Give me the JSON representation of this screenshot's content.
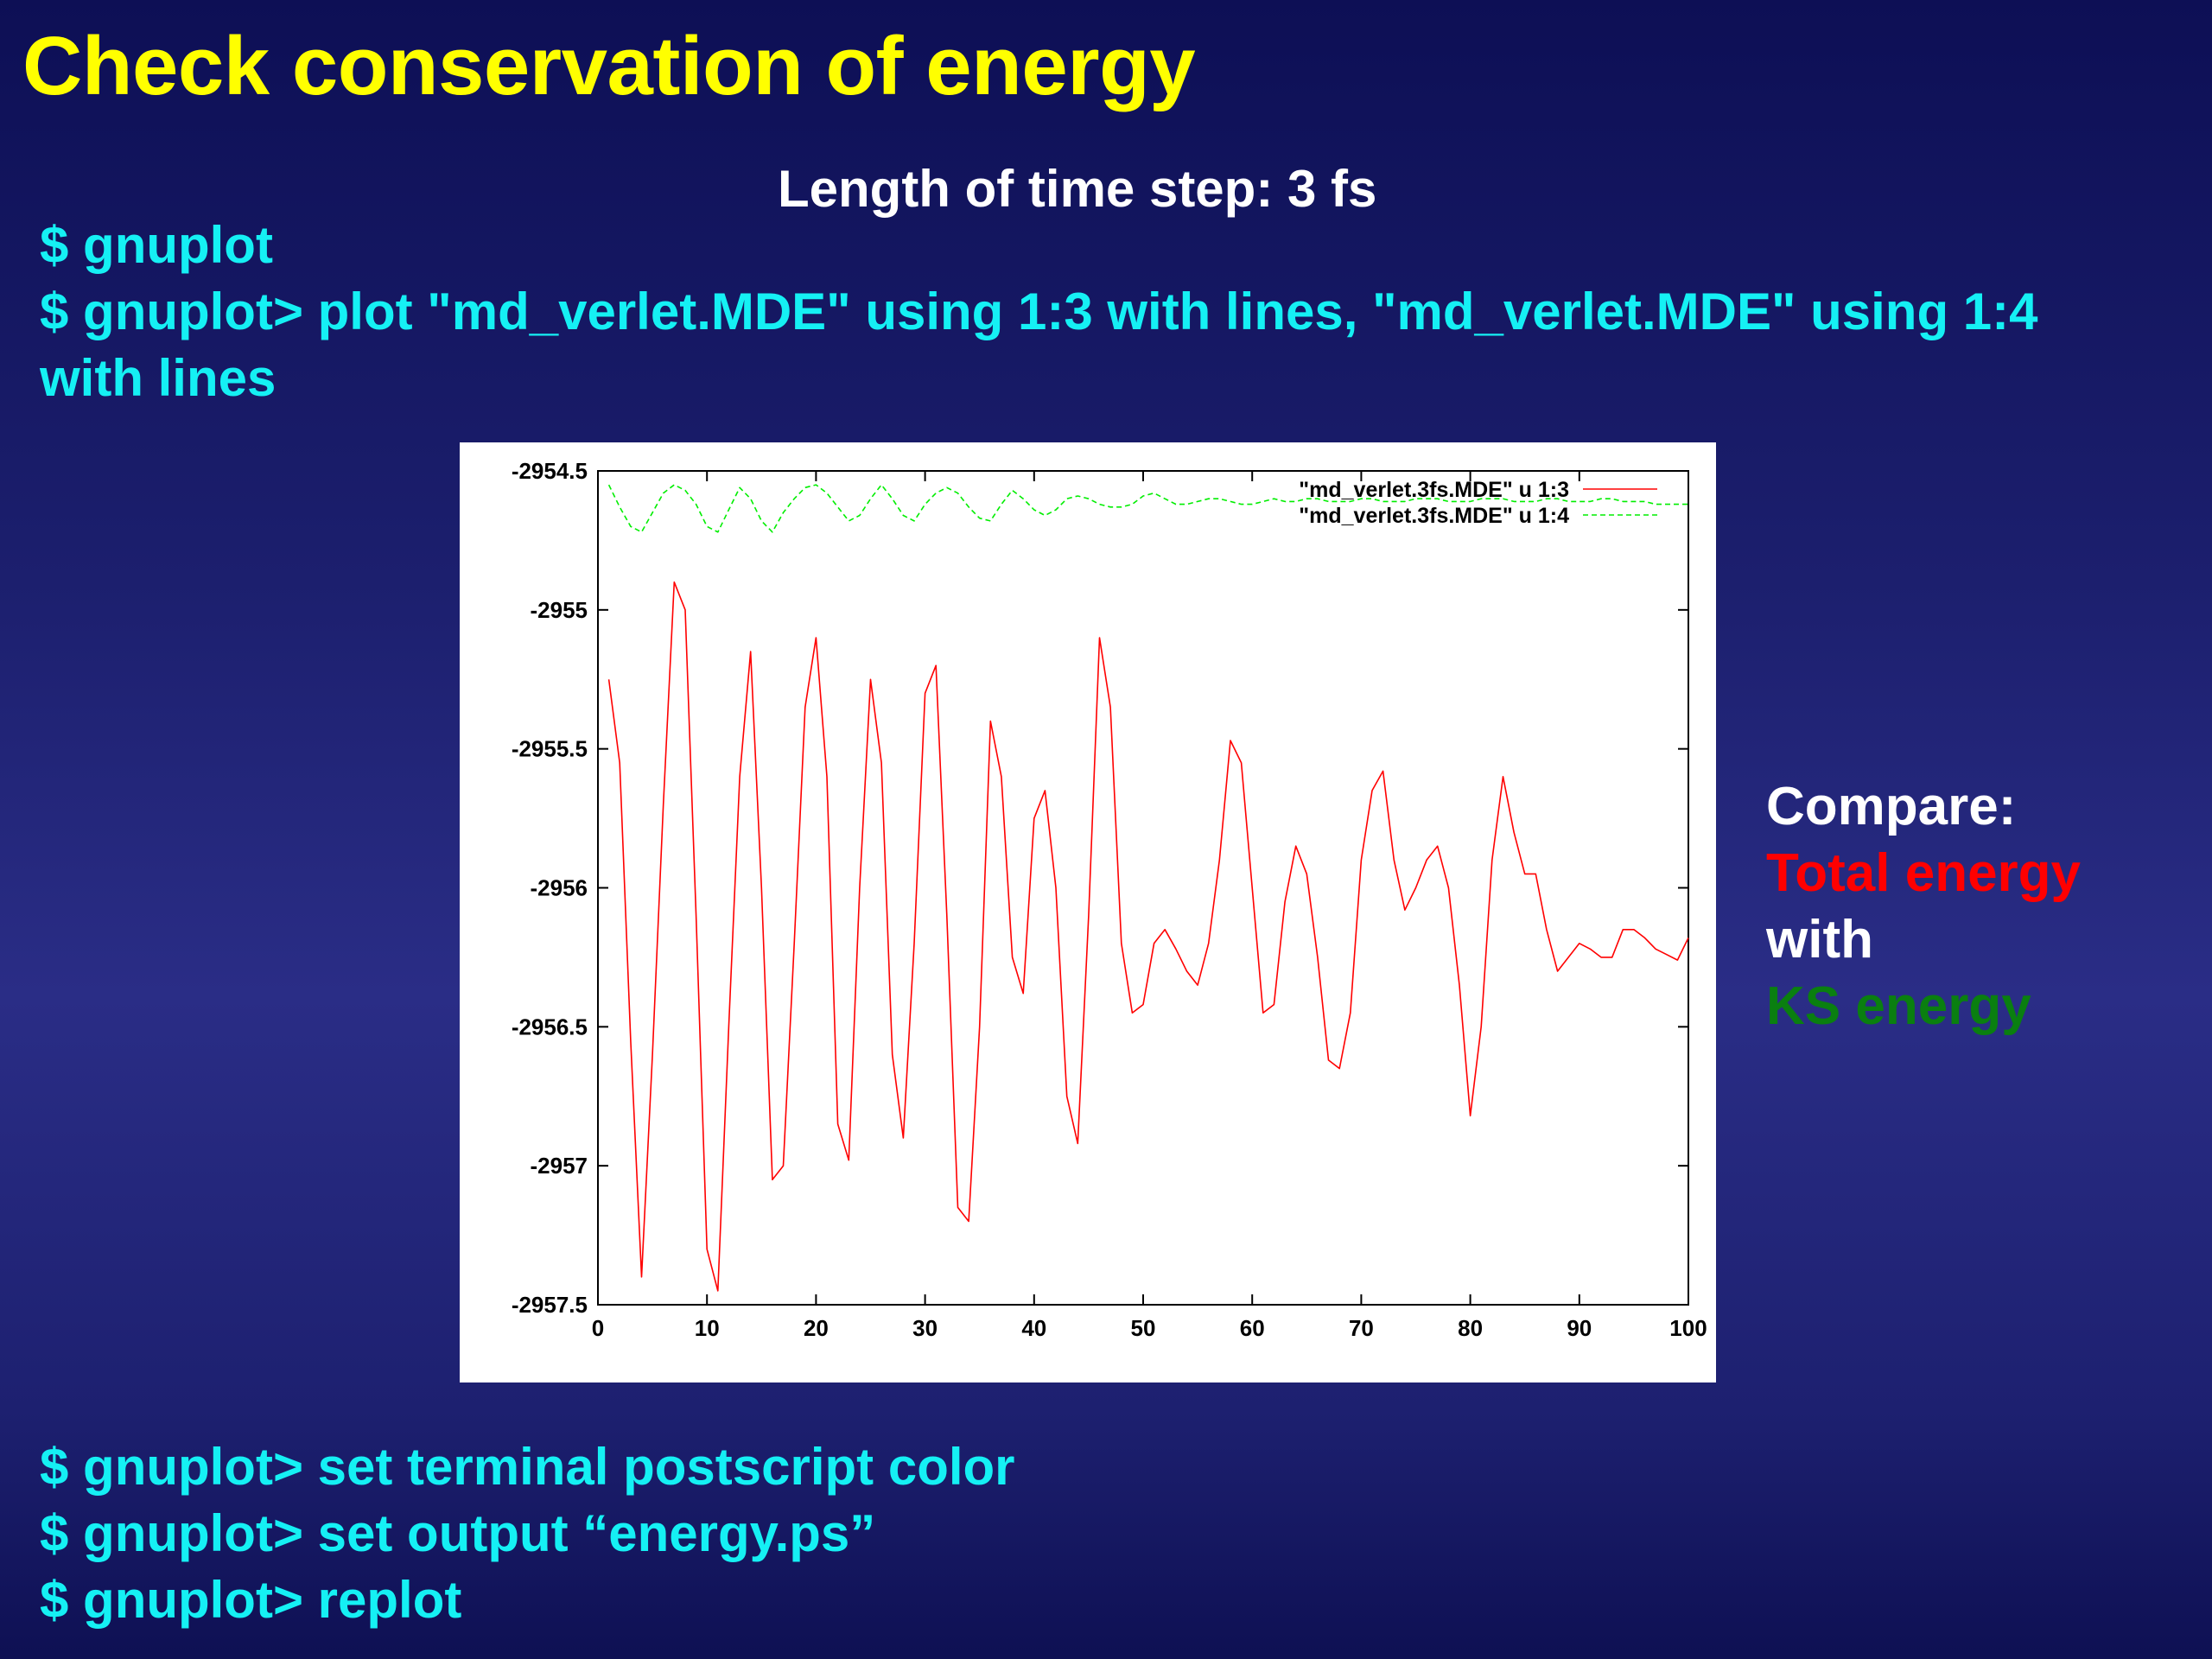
{
  "slide": {
    "title": "Check conservation of energy",
    "subtitle": "Length of time step: 3 fs",
    "commands_top": [
      "$ gnuplot",
      "$ gnuplot> plot \"md_verlet.MDE\" using 1:3 with lines, \"md_verlet.MDE\" using 1:4",
      "with lines"
    ],
    "commands_bottom": [
      "$ gnuplot> set terminal postscript color",
      "$ gnuplot> set output “energy.ps”",
      "$ gnuplot> replot"
    ],
    "compare": {
      "heading": "Compare:",
      "line1": "Total energy",
      "connector": "with",
      "line2": "KS energy",
      "colors": {
        "heading": "#ffffff",
        "line1": "#ff0000",
        "connector": "#ffffff",
        "line2": "#0a7f10"
      }
    },
    "colors": {
      "title": "#ffff00",
      "commands": "#15f0f4",
      "subtitle": "#ffffff"
    }
  },
  "chart_data": {
    "type": "line",
    "title": "",
    "xlabel": "",
    "ylabel": "",
    "xlim": [
      0,
      100
    ],
    "ylim": [
      -2957.5,
      -2954.5
    ],
    "x_ticks": [
      "0",
      "10",
      "20",
      "30",
      "40",
      "50",
      "60",
      "70",
      "80",
      "90",
      "100"
    ],
    "y_ticks": [
      "-2954.5",
      "-2955",
      "-2955.5",
      "-2956",
      "-2956.5",
      "-2957",
      "-2957.5"
    ],
    "grid": false,
    "legend_position": "top-right",
    "series": [
      {
        "name": "\"md_verlet.3fs.MDE\" u 1:3",
        "color": "#ff0000",
        "dash": "solid",
        "x": [
          1,
          2,
          3,
          4,
          5,
          6,
          7,
          8,
          9,
          10,
          11,
          12,
          13,
          14,
          15,
          16,
          17,
          18,
          19,
          20,
          21,
          22,
          23,
          24,
          25,
          26,
          27,
          28,
          29,
          30,
          31,
          32,
          33,
          34,
          35,
          36,
          37,
          38,
          39,
          40,
          41,
          42,
          43,
          44,
          45,
          46,
          47,
          48,
          49,
          50,
          51,
          52,
          53,
          54,
          55,
          56,
          57,
          58,
          59,
          60,
          61,
          62,
          63,
          64,
          65,
          66,
          67,
          68,
          69,
          70,
          71,
          72,
          73,
          74,
          75,
          76,
          77,
          78,
          79,
          80,
          81,
          82,
          83,
          84,
          85,
          86,
          87,
          88,
          89,
          90,
          91,
          92,
          93,
          94,
          95,
          96,
          97,
          98,
          99,
          100
        ],
        "y": [
          -2955.25,
          -2955.55,
          -2956.55,
          -2957.4,
          -2956.6,
          -2955.7,
          -2954.9,
          -2955.0,
          -2956.1,
          -2957.3,
          -2957.45,
          -2956.5,
          -2955.6,
          -2955.15,
          -2956.0,
          -2957.05,
          -2957.0,
          -2956.2,
          -2955.35,
          -2955.1,
          -2955.6,
          -2956.85,
          -2956.98,
          -2956.0,
          -2955.25,
          -2955.55,
          -2956.6,
          -2956.9,
          -2956.2,
          -2955.3,
          -2955.2,
          -2956.1,
          -2957.15,
          -2957.2,
          -2956.5,
          -2955.4,
          -2955.6,
          -2956.25,
          -2956.38,
          -2955.75,
          -2955.65,
          -2956.0,
          -2956.75,
          -2956.92,
          -2956.1,
          -2955.1,
          -2955.35,
          -2956.2,
          -2956.45,
          -2956.42,
          -2956.2,
          -2956.15,
          -2956.22,
          -2956.3,
          -2956.35,
          -2956.2,
          -2955.9,
          -2955.47,
          -2955.55,
          -2956.0,
          -2956.45,
          -2956.42,
          -2956.05,
          -2955.85,
          -2955.95,
          -2956.25,
          -2956.62,
          -2956.65,
          -2956.45,
          -2955.9,
          -2955.65,
          -2955.58,
          -2955.9,
          -2956.08,
          -2956.0,
          -2955.9,
          -2955.85,
          -2956.0,
          -2956.35,
          -2956.82,
          -2956.5,
          -2955.9,
          -2955.6,
          -2955.8,
          -2955.95,
          -2955.95,
          -2956.15,
          -2956.3,
          -2956.25,
          -2956.2,
          -2956.22,
          -2956.25,
          -2956.25,
          -2956.15,
          -2956.15,
          -2956.18,
          -2956.22,
          -2956.24,
          -2956.26,
          -2956.18
        ]
      },
      {
        "name": "\"md_verlet.3fs.MDE\" u 1:4",
        "color": "#00ee00",
        "dash": "dashed",
        "x": [
          1,
          2,
          3,
          4,
          5,
          6,
          7,
          8,
          9,
          10,
          11,
          12,
          13,
          14,
          15,
          16,
          17,
          18,
          19,
          20,
          21,
          22,
          23,
          24,
          25,
          26,
          27,
          28,
          29,
          30,
          31,
          32,
          33,
          34,
          35,
          36,
          37,
          38,
          39,
          40,
          41,
          42,
          43,
          44,
          45,
          46,
          47,
          48,
          49,
          50,
          51,
          52,
          53,
          54,
          55,
          56,
          57,
          58,
          59,
          60,
          61,
          62,
          63,
          64,
          65,
          66,
          67,
          68,
          69,
          70,
          71,
          72,
          73,
          74,
          75,
          76,
          77,
          78,
          79,
          80,
          81,
          82,
          83,
          84,
          85,
          86,
          87,
          88,
          89,
          90,
          91,
          92,
          93,
          94,
          95,
          96,
          97,
          98,
          99,
          100
        ],
        "y": [
          -2954.55,
          -2954.63,
          -2954.7,
          -2954.72,
          -2954.65,
          -2954.58,
          -2954.55,
          -2954.57,
          -2954.62,
          -2954.7,
          -2954.72,
          -2954.64,
          -2954.56,
          -2954.6,
          -2954.68,
          -2954.72,
          -2954.65,
          -2954.6,
          -2954.56,
          -2954.55,
          -2954.58,
          -2954.63,
          -2954.68,
          -2954.66,
          -2954.6,
          -2954.55,
          -2954.6,
          -2954.66,
          -2954.68,
          -2954.62,
          -2954.58,
          -2954.56,
          -2954.58,
          -2954.63,
          -2954.67,
          -2954.68,
          -2954.62,
          -2954.57,
          -2954.6,
          -2954.64,
          -2954.66,
          -2954.64,
          -2954.6,
          -2954.59,
          -2954.6,
          -2954.62,
          -2954.63,
          -2954.63,
          -2954.62,
          -2954.59,
          -2954.58,
          -2954.6,
          -2954.62,
          -2954.62,
          -2954.61,
          -2954.6,
          -2954.6,
          -2954.61,
          -2954.62,
          -2954.62,
          -2954.61,
          -2954.6,
          -2954.61,
          -2954.61,
          -2954.6,
          -2954.6,
          -2954.61,
          -2954.61,
          -2954.61,
          -2954.6,
          -2954.6,
          -2954.61,
          -2954.61,
          -2954.61,
          -2954.6,
          -2954.6,
          -2954.6,
          -2954.61,
          -2954.61,
          -2954.61,
          -2954.6,
          -2954.6,
          -2954.6,
          -2954.61,
          -2954.61,
          -2954.61,
          -2954.6,
          -2954.6,
          -2954.61,
          -2954.61,
          -2954.61,
          -2954.6,
          -2954.6,
          -2954.61,
          -2954.61,
          -2954.61,
          -2954.62,
          -2954.62,
          -2954.62,
          -2954.62
        ]
      }
    ]
  }
}
